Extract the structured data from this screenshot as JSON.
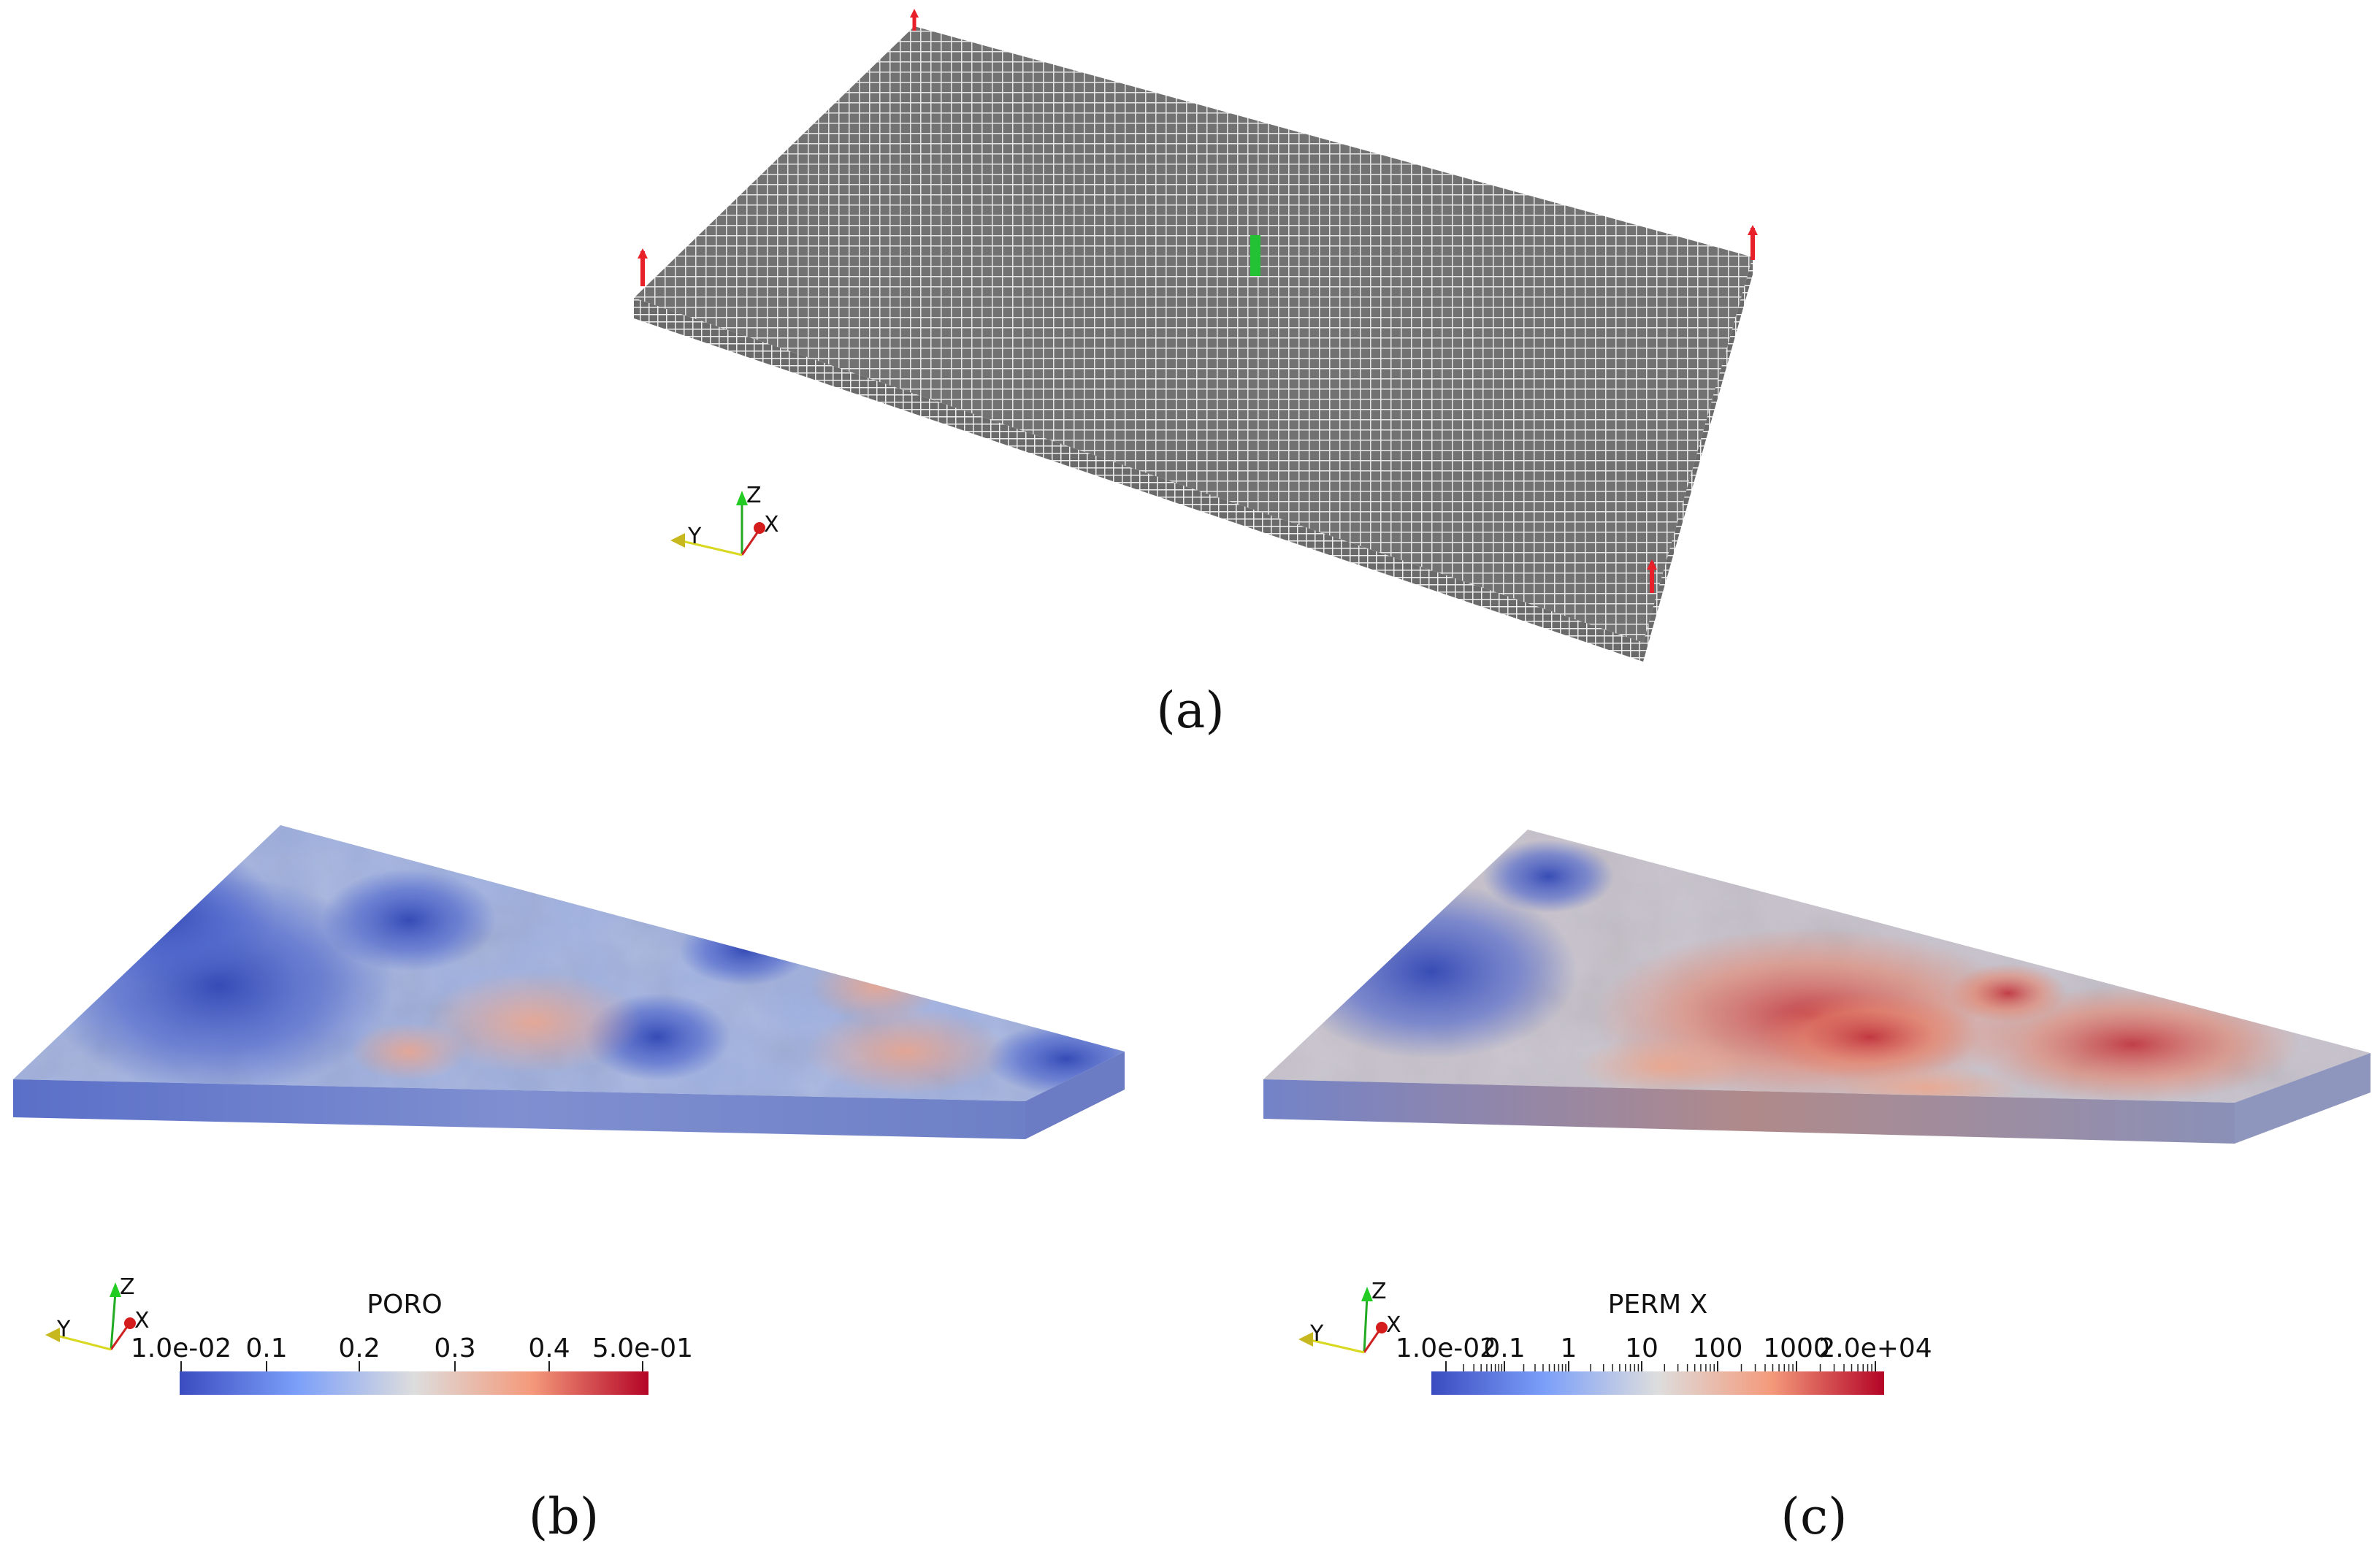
{
  "panels": [
    {
      "id": "a",
      "caption": "(a)"
    },
    {
      "id": "b",
      "caption": "(b)",
      "colorbar": {
        "title": "PORO",
        "ticks": [
          "1.0e-02",
          "0.1",
          "0.2",
          "0.3",
          "0.4",
          "5.0e-01"
        ]
      }
    },
    {
      "id": "c",
      "caption": "(c)",
      "colorbar": {
        "title": "PERM X",
        "ticks": [
          "1.0e-02",
          "0.1",
          "1",
          "10",
          "100",
          "1000",
          "2.0e+04"
        ]
      }
    }
  ],
  "axes_labels": {
    "x": "X",
    "y": "Y",
    "z": "Z"
  },
  "colors": {
    "colormap_low": "#3b4cc0",
    "colormap_mid": "#dddddd",
    "colormap_high": "#b40426",
    "well_injector": "#e8202a",
    "well_producer": "#22c234",
    "grid_face": "#6b6b6b"
  }
}
